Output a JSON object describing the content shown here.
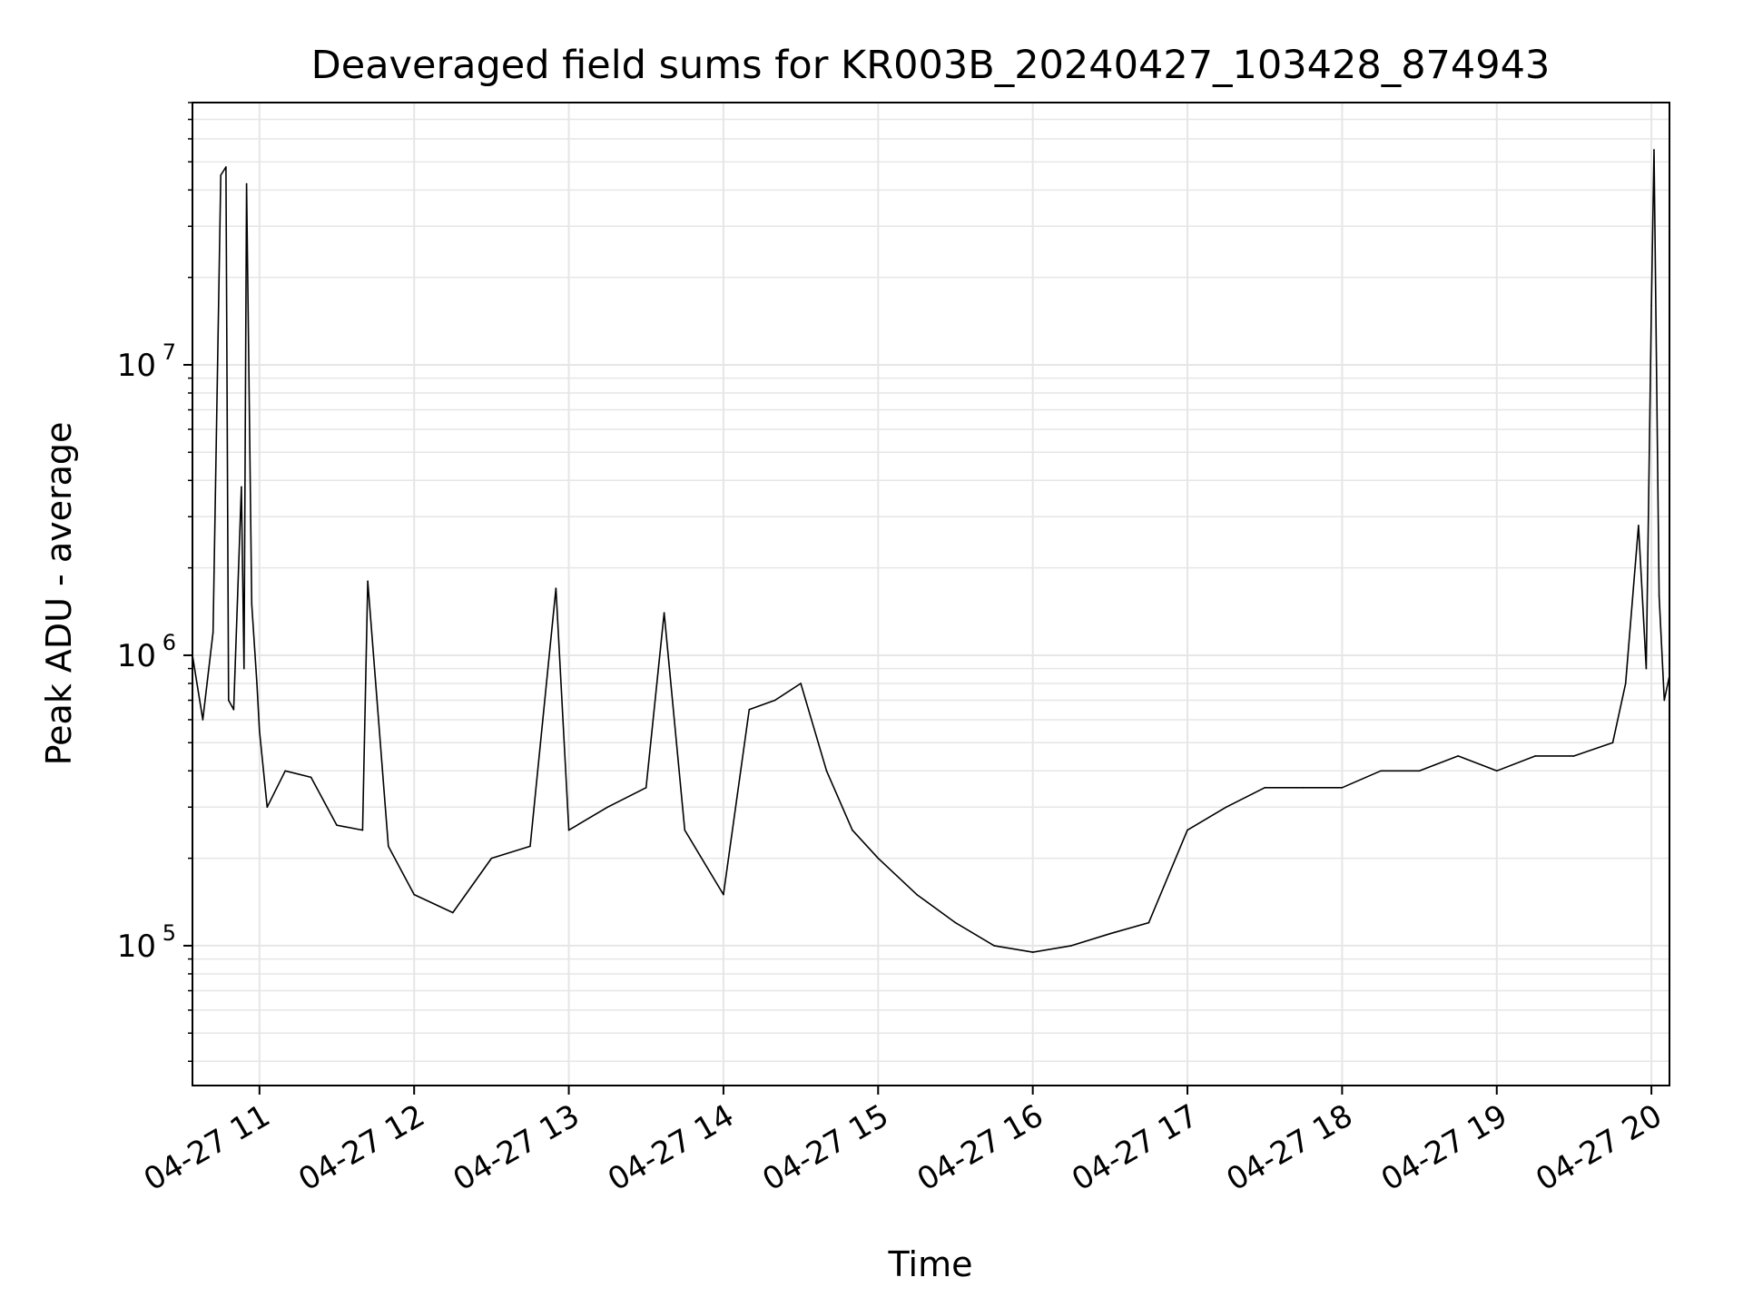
{
  "chart_data": {
    "type": "line",
    "title": "Deaveraged field sums for KR003B_20240427_103428_874943",
    "xlabel": "Time",
    "ylabel": "Peak ADU - average",
    "yscale": "log",
    "grid": true,
    "line_color": "#000000",
    "grid_color": "#e6e6e6",
    "xlim": [
      "2024-04-27 10:34",
      "2024-04-27 20:07"
    ],
    "ylim": [
      33000,
      80000000
    ],
    "x_ticks": [
      {
        "value": "2024-04-27 11:00",
        "label": "04-27 11"
      },
      {
        "value": "2024-04-27 12:00",
        "label": "04-27 12"
      },
      {
        "value": "2024-04-27 13:00",
        "label": "04-27 13"
      },
      {
        "value": "2024-04-27 14:00",
        "label": "04-27 14"
      },
      {
        "value": "2024-04-27 15:00",
        "label": "04-27 15"
      },
      {
        "value": "2024-04-27 16:00",
        "label": "04-27 16"
      },
      {
        "value": "2024-04-27 17:00",
        "label": "04-27 17"
      },
      {
        "value": "2024-04-27 18:00",
        "label": "04-27 18"
      },
      {
        "value": "2024-04-27 19:00",
        "label": "04-27 19"
      },
      {
        "value": "2024-04-27 20:00",
        "label": "04-27 20"
      }
    ],
    "y_ticks": [
      {
        "value": 100000,
        "base": "10",
        "exp": "5"
      },
      {
        "value": 1000000,
        "base": "10",
        "exp": "6"
      },
      {
        "value": 10000000,
        "base": "10",
        "exp": "7"
      }
    ],
    "series": [
      {
        "x": [
          "2024-04-27 10:34",
          "2024-04-27 10:38",
          "2024-04-27 10:42",
          "2024-04-27 10:45",
          "2024-04-27 10:47",
          "2024-04-27 10:48",
          "2024-04-27 10:50",
          "2024-04-27 10:53",
          "2024-04-27 10:54",
          "2024-04-27 10:55",
          "2024-04-27 10:57",
          "2024-04-27 10:59",
          "2024-04-27 11:00",
          "2024-04-27 11:03",
          "2024-04-27 11:10",
          "2024-04-27 11:20",
          "2024-04-27 11:30",
          "2024-04-27 11:40",
          "2024-04-27 11:42",
          "2024-04-27 11:50",
          "2024-04-27 12:00",
          "2024-04-27 12:15",
          "2024-04-27 12:30",
          "2024-04-27 12:45",
          "2024-04-27 12:55",
          "2024-04-27 13:00",
          "2024-04-27 13:15",
          "2024-04-27 13:30",
          "2024-04-27 13:37",
          "2024-04-27 13:45",
          "2024-04-27 14:00",
          "2024-04-27 14:10",
          "2024-04-27 14:20",
          "2024-04-27 14:30",
          "2024-04-27 14:40",
          "2024-04-27 14:50",
          "2024-04-27 15:00",
          "2024-04-27 15:15",
          "2024-04-27 15:30",
          "2024-04-27 15:45",
          "2024-04-27 16:00",
          "2024-04-27 16:15",
          "2024-04-27 16:30",
          "2024-04-27 16:45",
          "2024-04-27 17:00",
          "2024-04-27 17:15",
          "2024-04-27 17:30",
          "2024-04-27 17:45",
          "2024-04-27 18:00",
          "2024-04-27 18:15",
          "2024-04-27 18:30",
          "2024-04-27 18:45",
          "2024-04-27 19:00",
          "2024-04-27 19:15",
          "2024-04-27 19:30",
          "2024-04-27 19:45",
          "2024-04-27 19:50",
          "2024-04-27 19:55",
          "2024-04-27 19:58",
          "2024-04-27 20:00",
          "2024-04-27 20:01",
          "2024-04-27 20:03",
          "2024-04-27 20:05",
          "2024-04-27 20:07"
        ],
        "y": [
          1000000,
          600000,
          1200000,
          45000000,
          48000000,
          700000,
          650000,
          3800000,
          900000,
          42000000,
          1500000,
          800000,
          550000,
          300000,
          400000,
          380000,
          260000,
          250000,
          1800000,
          220000,
          150000,
          130000,
          200000,
          220000,
          1700000,
          250000,
          300000,
          350000,
          1400000,
          250000,
          150000,
          650000,
          700000,
          800000,
          400000,
          250000,
          200000,
          150000,
          120000,
          100000,
          95000,
          100000,
          110000,
          120000,
          250000,
          300000,
          350000,
          350000,
          350000,
          400000,
          400000,
          450000,
          400000,
          450000,
          450000,
          500000,
          800000,
          2800000,
          900000,
          16000000,
          55000000,
          1600000,
          700000,
          850000
        ]
      }
    ]
  }
}
